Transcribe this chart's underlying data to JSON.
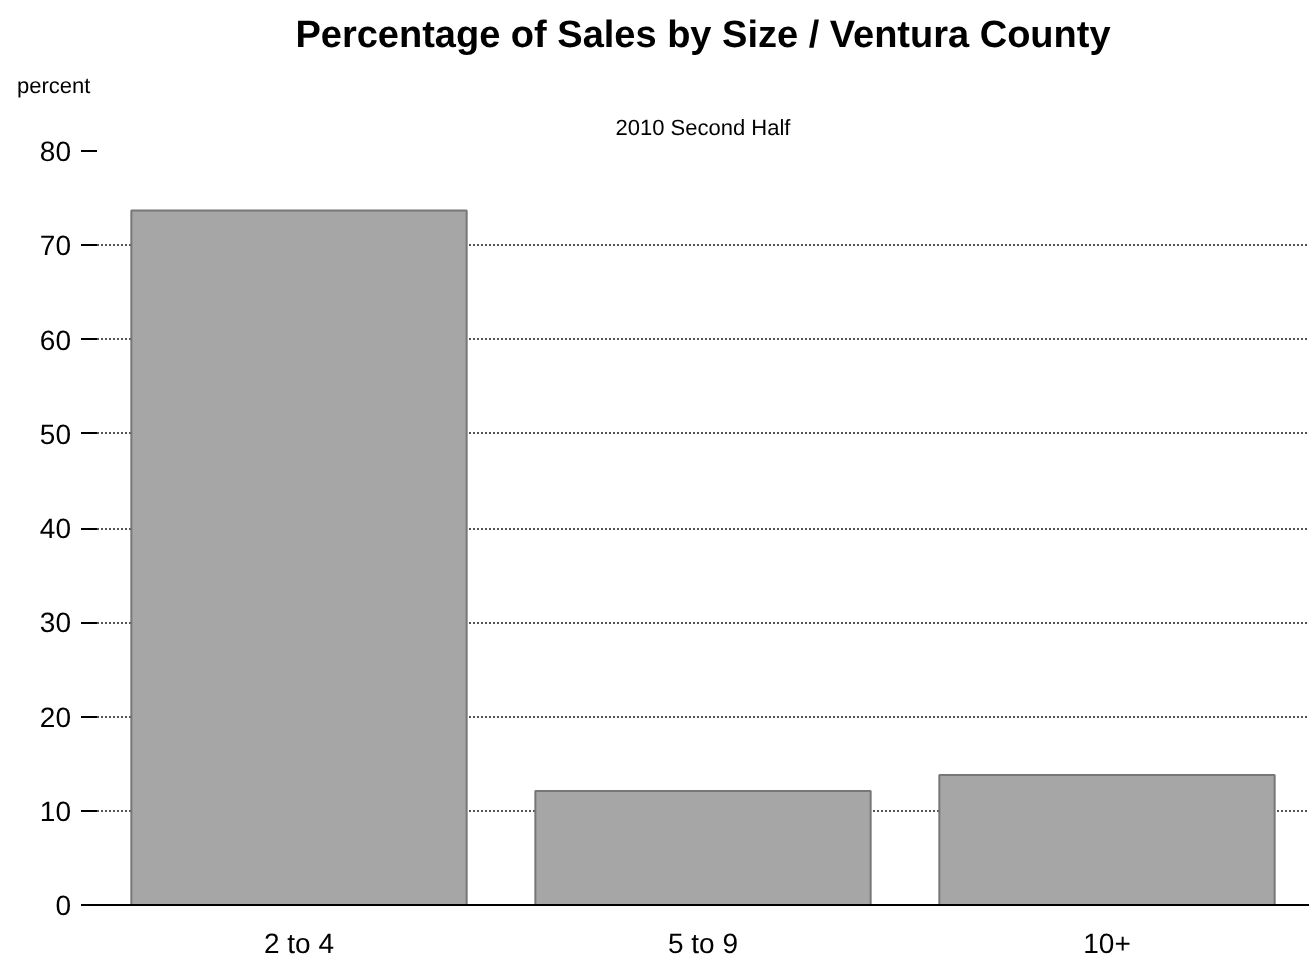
{
  "chart_data": {
    "type": "bar",
    "title": "Percentage of Sales by Size / Ventura County",
    "subtitle": "2010 Second Half",
    "ylabel": "percent",
    "categories": [
      "2 to 4",
      "5 to 9",
      "10+"
    ],
    "values": [
      73.7,
      12.1,
      13.8
    ],
    "color": "#a6a6a6",
    "ylim": [
      0,
      80
    ],
    "yticks": [
      0,
      10,
      20,
      30,
      40,
      50,
      60,
      70,
      80
    ],
    "grid": "y"
  }
}
